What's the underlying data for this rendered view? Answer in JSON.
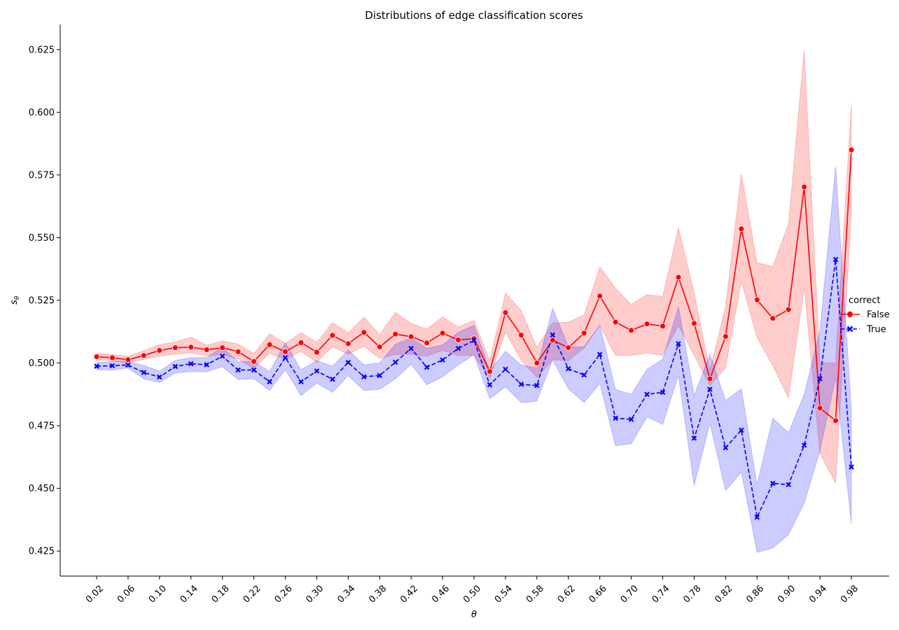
{
  "chart_data": {
    "type": "line",
    "title": "Distributions of edge classification scores",
    "xlabel": "θ",
    "ylabel": "s",
    "ylabel_sub": "θ",
    "legend_title": "correct",
    "legend_position": "center-right",
    "ylim": [
      0.415,
      0.635
    ],
    "yticks": [
      0.425,
      0.45,
      0.475,
      0.5,
      0.525,
      0.55,
      0.575,
      0.6,
      0.625
    ],
    "ytick_labels": [
      "0.425",
      "0.450",
      "0.475",
      "0.500",
      "0.525",
      "0.550",
      "0.575",
      "0.600",
      "0.625"
    ],
    "xticks": [
      0.02,
      0.06,
      0.1,
      0.14,
      0.18,
      0.22,
      0.26,
      0.3,
      0.34,
      0.38,
      0.42,
      0.46,
      0.5,
      0.54,
      0.58,
      0.62,
      0.66,
      0.7,
      0.74,
      0.78,
      0.82,
      0.86,
      0.9,
      0.94,
      0.98
    ],
    "xtick_labels": [
      "0.02",
      "0.06",
      "0.10",
      "0.14",
      "0.18",
      "0.22",
      "0.26",
      "0.30",
      "0.34",
      "0.38",
      "0.42",
      "0.46",
      "0.50",
      "0.54",
      "0.58",
      "0.62",
      "0.66",
      "0.70",
      "0.74",
      "0.78",
      "0.82",
      "0.86",
      "0.90",
      "0.94",
      "0.98"
    ],
    "x": [
      0.02,
      0.04,
      0.06,
      0.08,
      0.1,
      0.12,
      0.14,
      0.16,
      0.18,
      0.2,
      0.22,
      0.24,
      0.26,
      0.28,
      0.3,
      0.32,
      0.34,
      0.36,
      0.38,
      0.4,
      0.42,
      0.44,
      0.46,
      0.48,
      0.5,
      0.52,
      0.54,
      0.56,
      0.58,
      0.6,
      0.62,
      0.64,
      0.66,
      0.68,
      0.7,
      0.72,
      0.74,
      0.76,
      0.78,
      0.8,
      0.82,
      0.84,
      0.86,
      0.88,
      0.9,
      0.92,
      0.94,
      0.96,
      0.98
    ],
    "series": [
      {
        "name": "False",
        "color": "#ff0000",
        "band_color": "#ff0000",
        "dash": "solid",
        "marker": "circle",
        "values": [
          0.5025,
          0.5021,
          0.5013,
          0.503,
          0.505,
          0.5061,
          0.5063,
          0.5053,
          0.5061,
          0.5045,
          0.5006,
          0.5073,
          0.5045,
          0.5081,
          0.5043,
          0.511,
          0.5077,
          0.5122,
          0.5064,
          0.5115,
          0.5105,
          0.508,
          0.5119,
          0.5092,
          0.5097,
          0.4966,
          0.5201,
          0.5111,
          0.5,
          0.5091,
          0.5061,
          0.5119,
          0.5267,
          0.5163,
          0.513,
          0.5156,
          0.5147,
          0.5342,
          0.5158,
          0.4937,
          0.5106,
          0.5535,
          0.5252,
          0.5178,
          0.5213,
          0.5702,
          0.482,
          0.477,
          0.585
        ],
        "lower": [
          0.5012,
          0.5009,
          0.5,
          0.5014,
          0.5027,
          0.5035,
          0.504,
          0.5028,
          0.5034,
          0.5015,
          0.498,
          0.5038,
          0.5015,
          0.5045,
          0.5003,
          0.5065,
          0.5035,
          0.5066,
          0.5018,
          0.5033,
          0.5035,
          0.5027,
          0.505,
          0.503,
          0.503,
          0.494,
          0.5124,
          0.501,
          0.4943,
          0.5013,
          0.5009,
          0.506,
          0.515,
          0.503,
          0.503,
          0.504,
          0.503,
          0.515,
          0.503,
          0.491,
          0.498,
          0.5325,
          0.51,
          0.499,
          0.486,
          0.53,
          0.464,
          0.452,
          0.56
        ],
        "upper": [
          0.5038,
          0.5034,
          0.5027,
          0.5049,
          0.5073,
          0.5084,
          0.5103,
          0.5071,
          0.5088,
          0.5076,
          0.5038,
          0.5117,
          0.5078,
          0.5121,
          0.5082,
          0.5161,
          0.512,
          0.5183,
          0.5113,
          0.5202,
          0.5158,
          0.5135,
          0.5184,
          0.5144,
          0.517,
          0.5009,
          0.5279,
          0.5209,
          0.5062,
          0.516,
          0.5163,
          0.5192,
          0.5383,
          0.5298,
          0.5233,
          0.5273,
          0.5265,
          0.554,
          0.528,
          0.497,
          0.5225,
          0.5755,
          0.54,
          0.5385,
          0.5555,
          0.625,
          0.5,
          0.5,
          0.6035
        ]
      },
      {
        "name": "True",
        "color": "#0000ff",
        "band_color": "#0000ff",
        "dash": "dashed",
        "marker": "x",
        "values": [
          0.4987,
          0.4989,
          0.4992,
          0.4962,
          0.4944,
          0.4986,
          0.4997,
          0.4993,
          0.5027,
          0.4972,
          0.4972,
          0.4925,
          0.5021,
          0.4925,
          0.4968,
          0.4935,
          0.5002,
          0.4945,
          0.495,
          0.5003,
          0.5058,
          0.4983,
          0.5012,
          0.5058,
          0.509,
          0.4913,
          0.4975,
          0.4915,
          0.491,
          0.5112,
          0.4977,
          0.4952,
          0.5034,
          0.478,
          0.4775,
          0.4875,
          0.4883,
          0.5077,
          0.47,
          0.4895,
          0.4662,
          0.4732,
          0.4385,
          0.452,
          0.4515,
          0.4672,
          0.4937,
          0.5413,
          0.4585
        ],
        "lower": [
          0.4973,
          0.4972,
          0.498,
          0.4937,
          0.4922,
          0.496,
          0.4966,
          0.4965,
          0.4985,
          0.4934,
          0.4937,
          0.489,
          0.4973,
          0.487,
          0.492,
          0.4883,
          0.495,
          0.489,
          0.4895,
          0.4937,
          0.4995,
          0.4913,
          0.4945,
          0.4992,
          0.5033,
          0.4857,
          0.4905,
          0.4842,
          0.4848,
          0.5012,
          0.4897,
          0.4842,
          0.4918,
          0.467,
          0.4678,
          0.4785,
          0.4755,
          0.495,
          0.451,
          0.476,
          0.449,
          0.4565,
          0.4245,
          0.4262,
          0.4315,
          0.444,
          0.465,
          0.494,
          0.436
        ],
        "upper": [
          0.5002,
          0.5006,
          0.5005,
          0.499,
          0.4967,
          0.501,
          0.5022,
          0.5022,
          0.5062,
          0.5005,
          0.5007,
          0.4965,
          0.508,
          0.4973,
          0.501,
          0.4987,
          0.5052,
          0.4993,
          0.5,
          0.5075,
          0.51,
          0.5058,
          0.5072,
          0.5122,
          0.515,
          0.497,
          0.5047,
          0.4992,
          0.498,
          0.5218,
          0.5065,
          0.5065,
          0.515,
          0.4895,
          0.4875,
          0.4975,
          0.5015,
          0.5225,
          0.487,
          0.5035,
          0.485,
          0.4897,
          0.4515,
          0.478,
          0.4722,
          0.4875,
          0.513,
          0.5785,
          0.481
        ]
      }
    ]
  }
}
